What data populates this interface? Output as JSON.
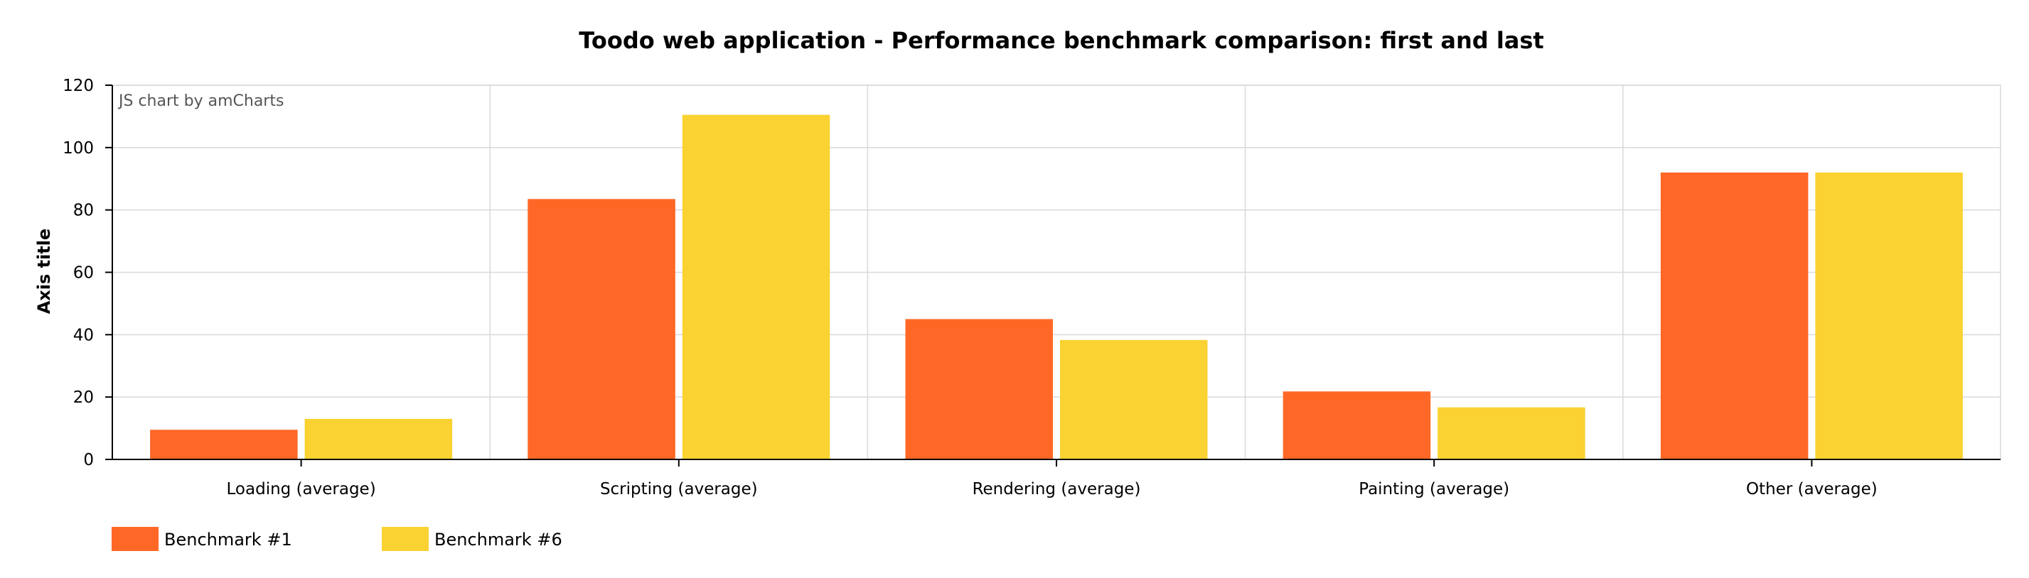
{
  "credit": "JS chart by amCharts",
  "chart_data": {
    "type": "bar",
    "title": "Toodo web application - Performance benchmark comparison: first and last",
    "xlabel": "",
    "ylabel": "Axis title",
    "ylim": [
      0,
      120
    ],
    "yticks": [
      0,
      20,
      40,
      60,
      80,
      100,
      120
    ],
    "grid": true,
    "legend": "bottom-left",
    "categories": [
      "Loading (average)",
      "Scripting (average)",
      "Rendering (average)",
      "Painting (average)",
      "Other (average)"
    ],
    "series": [
      {
        "name": "Benchmark #1",
        "color": "#FF6726",
        "values": [
          9.5,
          83.5,
          45,
          21.8,
          92
        ]
      },
      {
        "name": "Benchmark #6",
        "color": "#FAD231",
        "values": [
          13,
          110.5,
          38.3,
          16.7,
          92
        ]
      }
    ]
  }
}
